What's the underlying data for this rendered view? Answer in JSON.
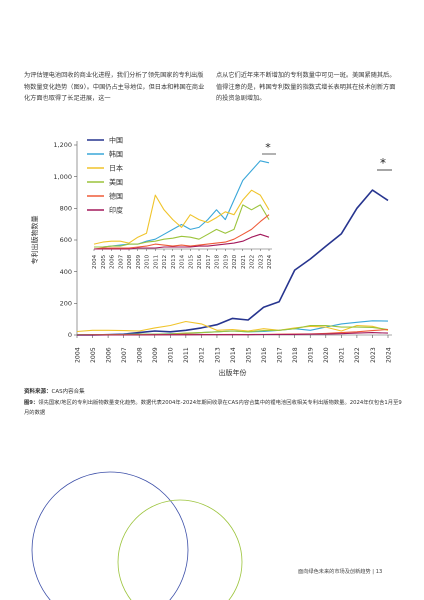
{
  "body_text": {
    "left": "为评估锂电池回收的商业化进程，我们分析了领先国家的专利出版物数量变化趋势（图9）。中国仍占主导地位，但日本和韩国在商业化方面也取得了长足进展，这一",
    "right": "点从它们近年来不断增加的专利数量中可见一斑。美国紧随其后。值得注意的是，韩国专利数量的指数式增长表明其在技术创新方面的投资急剧增加。"
  },
  "chart_data": {
    "type": "line",
    "xlabel": "出版年份",
    "ylabel": "专利出版物数量",
    "x": [
      "2004",
      "2005",
      "2006",
      "2007",
      "2008",
      "2009",
      "2010",
      "2011",
      "2012",
      "2013",
      "2014",
      "2015",
      "2016",
      "2017",
      "2018",
      "2019",
      "2020",
      "2021",
      "2022",
      "2023",
      "2024"
    ],
    "ylim": [
      0,
      1200
    ],
    "yticks": [
      "0",
      "200",
      "400",
      "600",
      "800",
      "1,000",
      "1,200"
    ],
    "series": [
      {
        "name": "中国",
        "color": "#27358f",
        "values": [
          0,
          0,
          2,
          5,
          15,
          25,
          20,
          30,
          45,
          65,
          105,
          95,
          175,
          210,
          410,
          480,
          560,
          640,
          800,
          915,
          850
        ]
      },
      {
        "name": "韩国",
        "color": "#3aa7d9",
        "values": [
          2,
          2,
          3,
          4,
          5,
          5,
          8,
          10,
          15,
          20,
          25,
          20,
          22,
          30,
          40,
          30,
          50,
          70,
          80,
          90,
          88
        ]
      },
      {
        "name": "日本",
        "color": "#f0c42b",
        "values": [
          22,
          30,
          30,
          28,
          25,
          45,
          60,
          85,
          70,
          30,
          35,
          25,
          40,
          30,
          45,
          55,
          50,
          25,
          60,
          55,
          30
        ]
      },
      {
        "name": "美国",
        "color": "#9cc43c",
        "values": [
          2,
          2,
          3,
          3,
          5,
          5,
          7,
          12,
          15,
          20,
          25,
          20,
          28,
          30,
          40,
          60,
          60,
          50,
          50,
          48,
          35
        ]
      },
      {
        "name": "德国",
        "color": "#ef5b39",
        "values": [
          0,
          1,
          1,
          1,
          1,
          2,
          3,
          5,
          4,
          3,
          4,
          3,
          4,
          5,
          6,
          7,
          10,
          15,
          20,
          28,
          35
        ]
      },
      {
        "name": "印度",
        "color": "#a3195b",
        "values": [
          0,
          0,
          0,
          0,
          0,
          1,
          1,
          1,
          2,
          2,
          2,
          2,
          3,
          3,
          4,
          5,
          6,
          8,
          12,
          15,
          12
        ]
      }
    ],
    "inset": {
      "x": [
        "2004",
        "2005",
        "2006",
        "2007",
        "2008",
        "2009",
        "2010",
        "2011",
        "2012",
        "2013",
        "2014",
        "2015",
        "2016",
        "2017",
        "2018",
        "2019",
        "2020",
        "2021",
        "2022",
        "2023",
        "2024"
      ],
      "series": [
        {
          "name": "韩国",
          "values": [
            2,
            2,
            3,
            4,
            5,
            5,
            8,
            10,
            15,
            20,
            25,
            20,
            22,
            30,
            40,
            30,
            50,
            70,
            80,
            90,
            88
          ]
        },
        {
          "name": "日本",
          "values": [
            5,
            7,
            8,
            8,
            6,
            12,
            16,
            55,
            40,
            30,
            22,
            35,
            30,
            27,
            32,
            38,
            35,
            50,
            60,
            55,
            40
          ]
        },
        {
          "name": "美国",
          "values": [
            2,
            2,
            3,
            3,
            5,
            5,
            7,
            8,
            10,
            11,
            13,
            12,
            10,
            15,
            20,
            16,
            20,
            45,
            40,
            45,
            30
          ]
        },
        {
          "name": "德国",
          "values": [
            0,
            1,
            1,
            1,
            1,
            2,
            3,
            5,
            4,
            3,
            4,
            3,
            4,
            5,
            6,
            7,
            10,
            15,
            20,
            28,
            35
          ]
        },
        {
          "name": "印度",
          "values": [
            0,
            0,
            0,
            0,
            0,
            1,
            1,
            1,
            2,
            2,
            2,
            2,
            3,
            3,
            4,
            5,
            6,
            8,
            12,
            15,
            12
          ]
        }
      ]
    },
    "annotations": [
      "*",
      "*"
    ]
  },
  "source": {
    "label": "资料来源：",
    "text": "CAS内容合集"
  },
  "caption": {
    "label": "图9：",
    "text": "领先国家/地区的专利出版物数量变化趋势。数据代表2004年-2024年期间收录在CAS内容合集中的锂电池回收相关专利出版物数量。2024年仅包含1月至9月的数据"
  },
  "footer": {
    "text": "面向绿色未来的市场及创新趋势",
    "page": "13"
  }
}
